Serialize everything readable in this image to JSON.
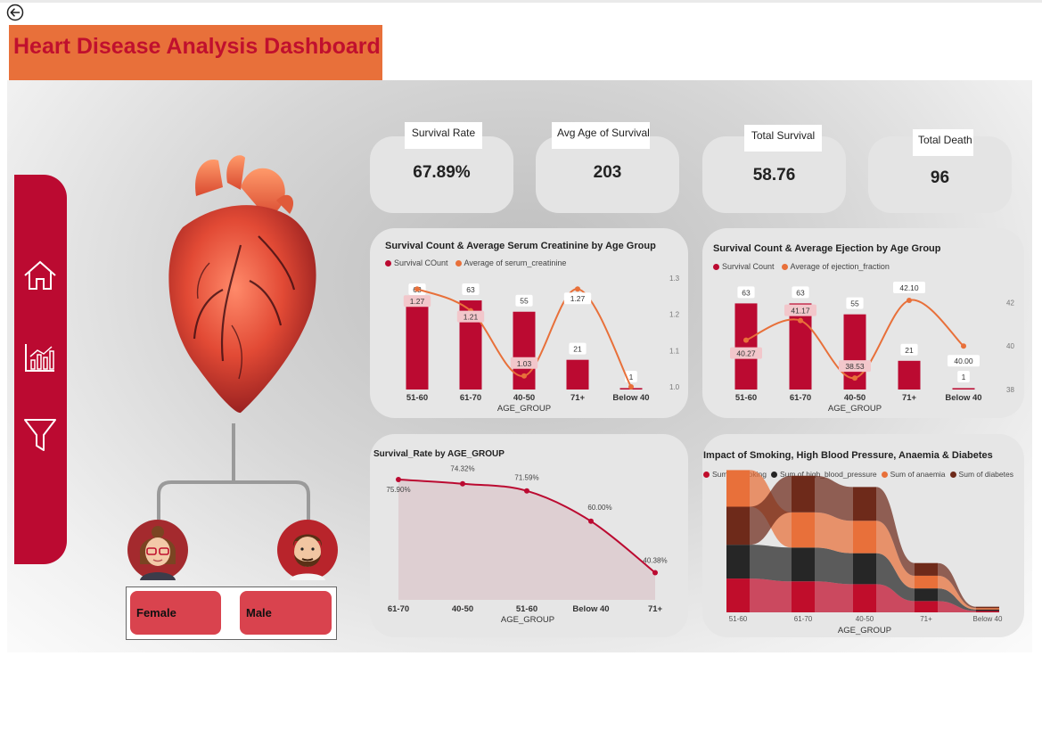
{
  "header": {
    "title": "Heart Disease Analysis Dashboard"
  },
  "colors": {
    "accent_red": "#bb0a31",
    "accent_orange": "#e8703a",
    "title_red": "#c0102e",
    "dark_brown": "#6e2a1a",
    "charcoal": "#262626"
  },
  "icons": {
    "back": "back-arrow-icon",
    "home": "home-icon",
    "chart": "bar-chart-icon",
    "filter": "filter-icon"
  },
  "kpis": [
    {
      "label": "Survival Rate",
      "value": "67.89%"
    },
    {
      "label": "Avg Age of Survival",
      "value": "203"
    },
    {
      "label": "Total Survival",
      "value": "58.76"
    },
    {
      "label": "Total Death",
      "value": "96"
    }
  ],
  "slicer": {
    "female": "Female",
    "male": "Male"
  },
  "chart_data": [
    {
      "type": "bar",
      "title": "Survival Count & Average Serum Creatinine by Age Group",
      "xlabel": "AGE_GROUP",
      "categories": [
        "51-60",
        "61-70",
        "40-50",
        "71+",
        "Below 40"
      ],
      "series": [
        {
          "name": "Survival COunt",
          "type": "bar",
          "values": [
            63,
            63,
            55,
            21,
            1
          ],
          "labels": [
            "63",
            "63",
            "55",
            "21",
            "1"
          ]
        },
        {
          "name": "Average of serum_creatinine",
          "type": "line",
          "values": [
            1.27,
            1.21,
            1.03,
            1.27,
            1.0
          ],
          "labels": [
            "1.27",
            "1.21",
            "1.03",
            "1.27",
            ""
          ]
        }
      ],
      "y2_ticks": [
        "1.3",
        "1.2",
        "1.1",
        "1.0"
      ],
      "y2lim": [
        1.0,
        1.3
      ],
      "ylim": [
        0,
        75
      ],
      "legend": "top-left"
    },
    {
      "type": "bar",
      "title": "Survival Count & Average Ejection by Age Group",
      "xlabel": "AGE_GROUP",
      "categories": [
        "51-60",
        "61-70",
        "40-50",
        "71+",
        "Below 40"
      ],
      "series": [
        {
          "name": "Survival Count",
          "type": "bar",
          "values": [
            63,
            63,
            55,
            21,
            1
          ],
          "labels": [
            "63",
            "63",
            "55",
            "21",
            "1"
          ]
        },
        {
          "name": "Average of ejection_fraction",
          "type": "line",
          "values": [
            40.27,
            41.17,
            38.53,
            42.1,
            40.0
          ],
          "labels": [
            "40.27",
            "41.17",
            "38.53",
            "42.10",
            "40.00"
          ]
        }
      ],
      "y2_ticks": [
        "42",
        "40",
        "38"
      ],
      "y2lim": [
        38,
        43
      ],
      "ylim": [
        0,
        75
      ],
      "legend": "top-left"
    },
    {
      "type": "area",
      "title": "Survival_Rate by AGE_GROUP",
      "xlabel": "AGE_GROUP",
      "categories": [
        "61-70",
        "40-50",
        "51-60",
        "Below 40",
        "71+"
      ],
      "values": [
        75.9,
        74.32,
        71.59,
        60.0,
        40.38
      ],
      "labels": [
        "75.90%",
        "74.32%",
        "71.59%",
        "60.00%",
        "40.38%"
      ],
      "ylim": [
        30,
        80
      ]
    },
    {
      "type": "area",
      "subtype": "ribbon",
      "title": "Impact of Smoking, High Blood Pressure, Anaemia & Diabetes",
      "xlabel": "AGE_GROUP",
      "categories": [
        "51-60",
        "61-70",
        "40-50",
        "71+",
        "Below 40"
      ],
      "series": [
        {
          "name": "Sum of smoking",
          "color": "#c00d2b",
          "values": [
            24,
            22,
            20,
            8,
            1
          ]
        },
        {
          "name": "Sum of high_blood_pressure",
          "color": "#262626",
          "values": [
            24,
            24,
            22,
            9,
            1
          ]
        },
        {
          "name": "Sum of anaemia",
          "color": "#e8703a",
          "values": [
            26,
            25,
            23,
            9,
            1
          ]
        },
        {
          "name": "Sum of diabetes",
          "color": "#6e2a1a",
          "values": [
            27,
            26,
            24,
            9,
            1
          ]
        }
      ],
      "legend": "top"
    }
  ]
}
